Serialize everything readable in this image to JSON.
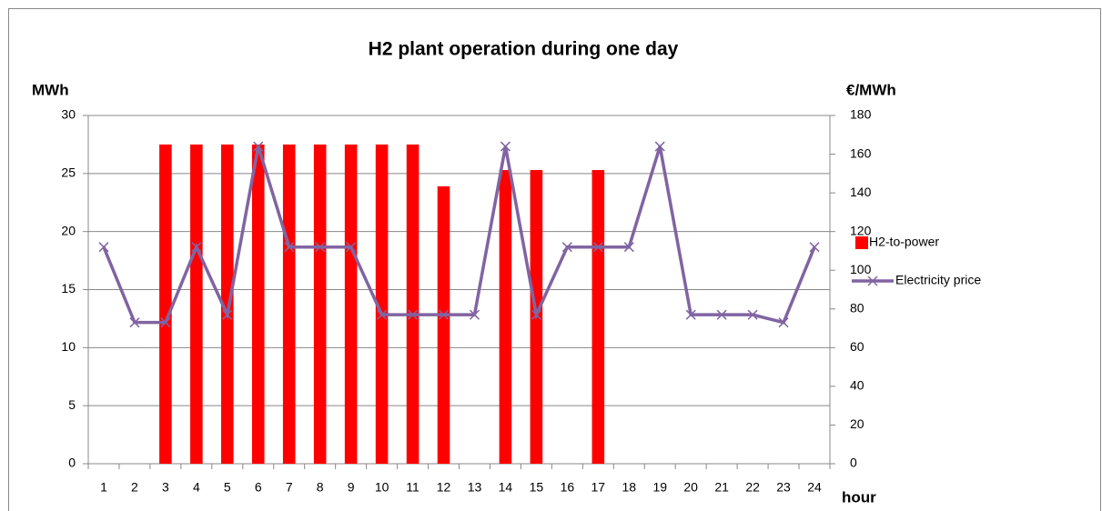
{
  "chart_data": {
    "type": "bar",
    "title": "H2 plant operation during one day",
    "y_label": "MWh",
    "y2_label": "€/MWh",
    "x_label": "hour",
    "categories": [
      "1",
      "2",
      "3",
      "4",
      "5",
      "6",
      "7",
      "8",
      "9",
      "10",
      "11",
      "12",
      "13",
      "14",
      "15",
      "16",
      "17",
      "18",
      "19",
      "20",
      "21",
      "22",
      "23",
      "24"
    ],
    "series": [
      {
        "name": "H2-to-power",
        "type": "bar",
        "color": "#ff0000",
        "values": [
          0,
          0,
          27.5,
          27.5,
          27.5,
          27.5,
          27.5,
          27.5,
          27.5,
          27.5,
          27.5,
          23.9,
          0,
          25.3,
          25.3,
          0,
          25.3,
          0,
          0,
          0,
          0,
          0,
          0,
          0
        ]
      },
      {
        "name": "Electricity price",
        "type": "line",
        "axis": "y2",
        "color": "#8064a2",
        "marker": "x",
        "values": [
          112,
          73,
          73,
          112,
          77,
          164,
          112,
          112,
          112,
          77,
          77,
          77,
          77,
          164,
          77,
          112,
          112,
          112,
          164,
          77,
          77,
          77,
          73,
          112
        ]
      }
    ],
    "ylim": [
      0,
      30
    ],
    "yticks": [
      0,
      5,
      10,
      15,
      20,
      25,
      30
    ],
    "y2lim": [
      0,
      180
    ],
    "y2ticks": [
      0,
      20,
      40,
      60,
      80,
      100,
      120,
      140,
      160,
      180
    ],
    "grid": true,
    "legend": "right"
  }
}
